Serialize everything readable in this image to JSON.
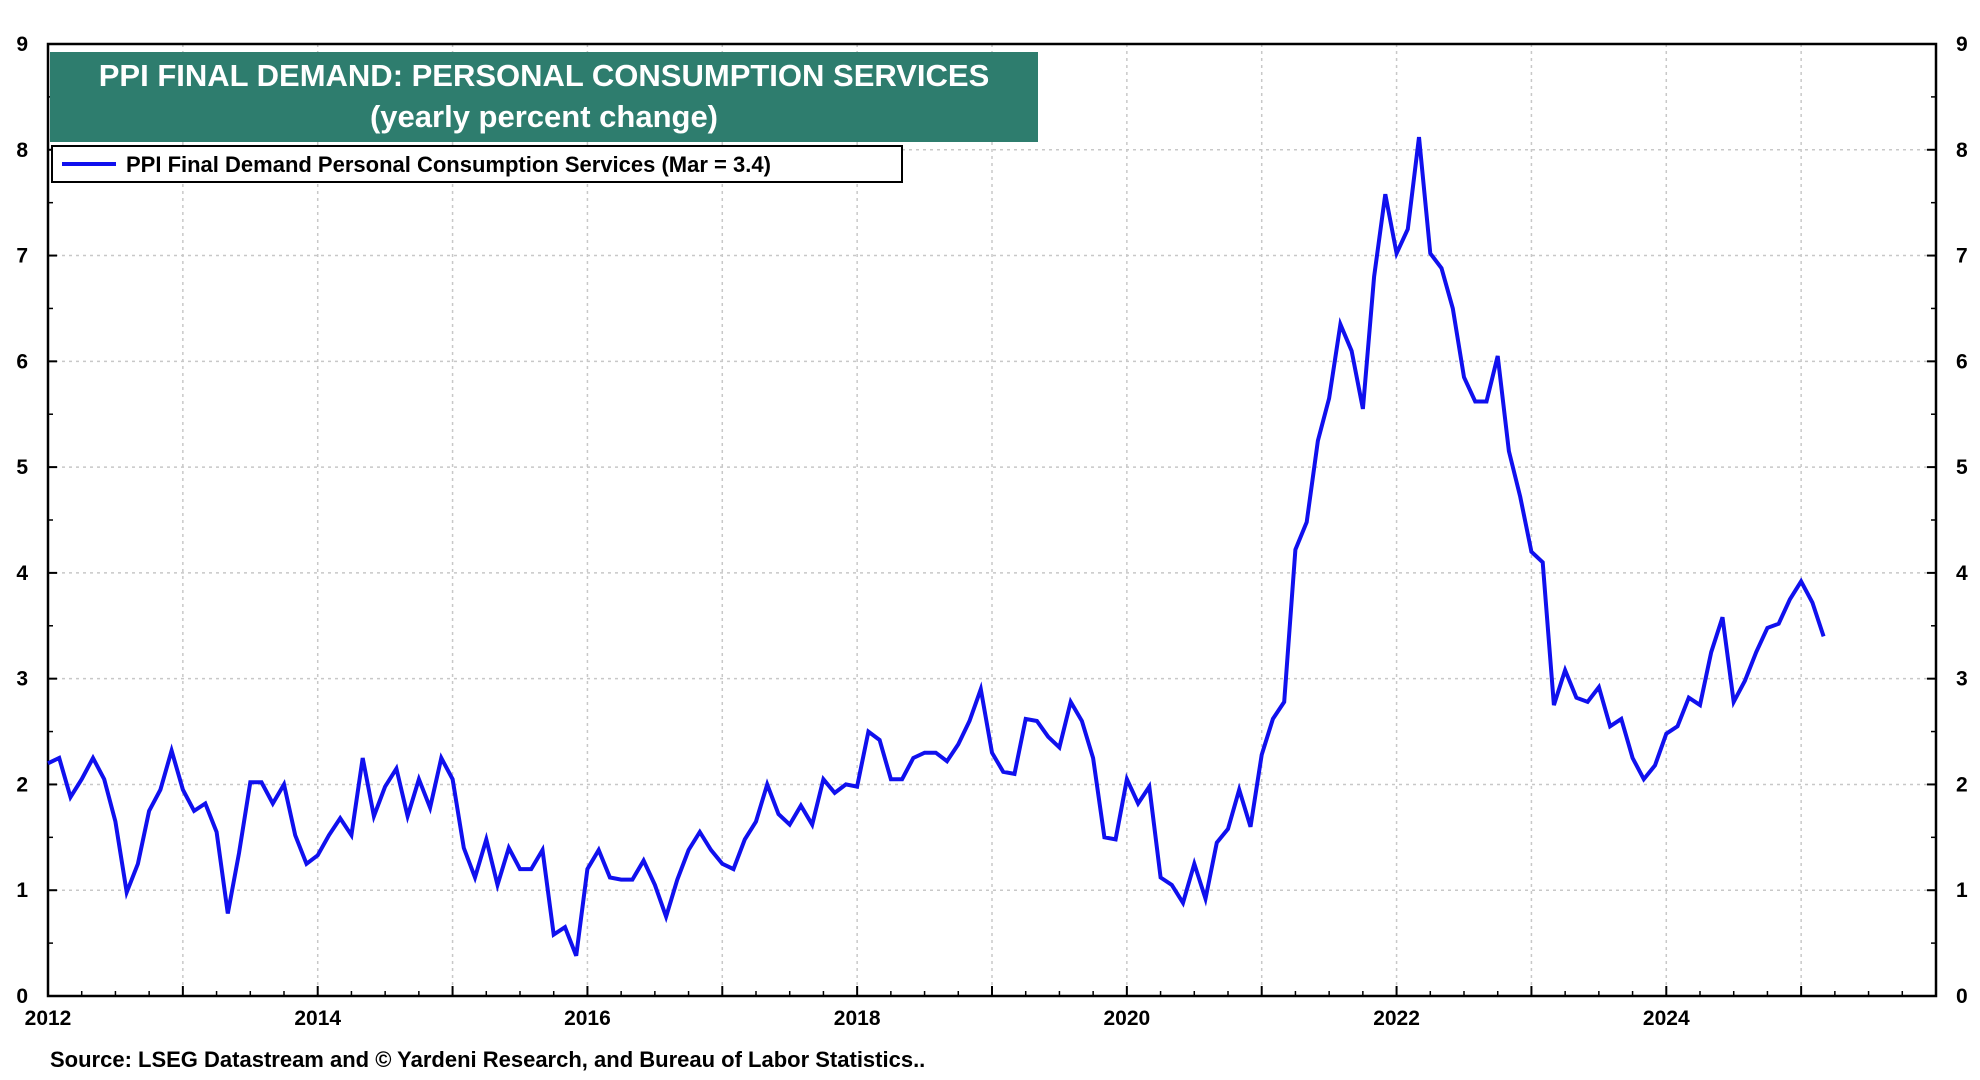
{
  "colors": {
    "title_bg": "#2e7d6e",
    "line": "#1010ee",
    "grid": "#c8c8c8"
  },
  "chart_data": {
    "type": "line",
    "title": "PPI FINAL DEMAND: PERSONAL CONSUMPTION SERVICES",
    "subtitle": "(yearly percent change)",
    "legend": "PPI Final Demand Personal Consumption Services  (Mar = 3.4)",
    "legend_placement": "top-left",
    "source": "Source: LSEG Datastream and © Yardeni Research, and Bureau of Labor Statistics..",
    "x_start": 2012.0,
    "x_step": 0.083333,
    "xlim": [
      2012,
      2026
    ],
    "ylim": [
      0,
      9
    ],
    "x_ticks": [
      "2012",
      "2014",
      "2016",
      "2018",
      "2020",
      "2022",
      "2024"
    ],
    "y_ticks_left": [
      "0",
      "1",
      "2",
      "3",
      "4",
      "5",
      "6",
      "7",
      "8",
      "9"
    ],
    "y_ticks_right": [
      "0",
      "1",
      "2",
      "3",
      "4",
      "5",
      "6",
      "7",
      "8",
      "9"
    ],
    "grid": true,
    "series": [
      {
        "name": "PPI Final Demand Personal Consumption Services",
        "values": [
          2.2,
          2.25,
          1.88,
          2.05,
          2.25,
          2.05,
          1.65,
          0.98,
          1.25,
          1.75,
          1.95,
          2.32,
          1.95,
          1.75,
          1.82,
          1.55,
          0.78,
          1.35,
          2.02,
          2.02,
          1.82,
          2.0,
          1.52,
          1.25,
          1.33,
          1.52,
          1.68,
          1.52,
          2.25,
          1.7,
          1.98,
          2.15,
          1.7,
          2.05,
          1.78,
          2.25,
          2.05,
          1.4,
          1.12,
          1.48,
          1.05,
          1.4,
          1.2,
          1.2,
          1.38,
          0.58,
          0.65,
          0.38,
          1.2,
          1.38,
          1.12,
          1.1,
          1.1,
          1.28,
          1.05,
          0.75,
          1.1,
          1.38,
          1.55,
          1.38,
          1.25,
          1.2,
          1.48,
          1.65,
          2.0,
          1.72,
          1.62,
          1.8,
          1.62,
          2.05,
          1.92,
          2.0,
          1.98,
          2.5,
          2.42,
          2.05,
          2.05,
          2.25,
          2.3,
          2.3,
          2.22,
          2.38,
          2.6,
          2.9,
          2.3,
          2.12,
          2.1,
          2.62,
          2.6,
          2.45,
          2.35,
          2.78,
          2.6,
          2.25,
          1.5,
          1.48,
          2.05,
          1.82,
          1.98,
          1.12,
          1.05,
          0.88,
          1.25,
          0.92,
          1.45,
          1.58,
          1.95,
          1.6,
          2.28,
          2.62,
          2.78,
          4.22,
          4.48,
          5.25,
          5.65,
          6.35,
          6.1,
          5.55,
          6.8,
          7.58,
          7.02,
          7.25,
          8.12,
          7.02,
          6.88,
          6.5,
          5.85,
          5.62,
          5.62,
          6.05,
          5.15,
          4.72,
          4.2,
          4.1,
          2.75,
          3.08,
          2.82,
          2.78,
          2.92,
          2.55,
          2.62,
          2.25,
          2.05,
          2.18,
          2.48,
          2.55,
          2.82,
          2.75,
          3.25,
          3.58,
          2.78,
          2.98,
          3.25,
          3.48,
          3.52,
          3.75,
          3.92,
          3.72,
          3.4
        ]
      }
    ]
  }
}
